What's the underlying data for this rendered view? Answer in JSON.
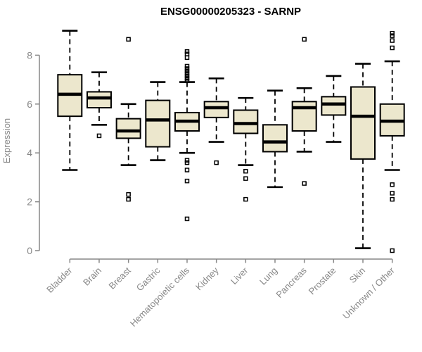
{
  "header": {
    "title": "ENSG00000205323 - SARNP"
  },
  "y_axis_label": "Expression",
  "colors": {
    "box_fill": "#ece7cd",
    "line": "#000000",
    "axis": "#878787",
    "background": "#ffffff"
  },
  "chart_data": {
    "type": "boxplot",
    "title": "ENSG00000205323 - SARNP",
    "xlabel": "",
    "ylabel": "Expression",
    "ylim": [
      0,
      9.1
    ],
    "yticks": [
      0,
      2,
      4,
      6,
      8
    ],
    "grid": false,
    "legend": false,
    "categories": [
      "Bladder",
      "Brain",
      "Breast",
      "Gastric",
      "Hematopoietic cells",
      "Kidney",
      "Liver",
      "Lung",
      "Pancreas",
      "Prostate",
      "Skin",
      "Unknown / Other"
    ],
    "series": [
      {
        "name": "Bladder",
        "whisker_low": 3.3,
        "q1": 5.5,
        "median": 6.4,
        "q3": 7.2,
        "whisker_high": 9.0,
        "outliers": []
      },
      {
        "name": "Brain",
        "whisker_low": 5.15,
        "q1": 5.85,
        "median": 6.25,
        "q3": 6.5,
        "whisker_high": 7.3,
        "outliers": [
          4.7
        ]
      },
      {
        "name": "Breast",
        "whisker_low": 3.5,
        "q1": 4.6,
        "median": 4.9,
        "q3": 5.4,
        "whisker_high": 6.0,
        "outliers": [
          8.65,
          2.3,
          2.1
        ]
      },
      {
        "name": "Gastric",
        "whisker_low": 3.7,
        "q1": 4.25,
        "median": 5.35,
        "q3": 6.15,
        "whisker_high": 6.9,
        "outliers": []
      },
      {
        "name": "Hematopoietic cells",
        "whisker_low": 4.0,
        "q1": 4.9,
        "median": 5.3,
        "q3": 5.65,
        "whisker_high": 6.9,
        "outliers": [
          8.15,
          8.05,
          7.9,
          7.55,
          7.45,
          7.35,
          7.25,
          7.15,
          7.05,
          6.95,
          3.7,
          3.6,
          3.3,
          2.85,
          1.3
        ]
      },
      {
        "name": "Kidney",
        "whisker_low": 4.45,
        "q1": 5.45,
        "median": 5.85,
        "q3": 6.1,
        "whisker_high": 7.05,
        "outliers": [
          3.6
        ]
      },
      {
        "name": "Liver",
        "whisker_low": 3.5,
        "q1": 4.8,
        "median": 5.2,
        "q3": 5.75,
        "whisker_high": 6.25,
        "outliers": [
          3.25,
          2.95,
          2.1
        ]
      },
      {
        "name": "Lung",
        "whisker_low": 2.6,
        "q1": 4.05,
        "median": 4.45,
        "q3": 5.15,
        "whisker_high": 6.55,
        "outliers": []
      },
      {
        "name": "Pancreas",
        "whisker_low": 4.05,
        "q1": 4.9,
        "median": 5.85,
        "q3": 6.1,
        "whisker_high": 6.65,
        "outliers": [
          8.65,
          2.75
        ]
      },
      {
        "name": "Prostate",
        "whisker_low": 4.45,
        "q1": 5.55,
        "median": 6.0,
        "q3": 6.3,
        "whisker_high": 7.15,
        "outliers": []
      },
      {
        "name": "Skin",
        "whisker_low": 0.1,
        "q1": 3.75,
        "median": 5.5,
        "q3": 6.7,
        "whisker_high": 7.65,
        "outliers": []
      },
      {
        "name": "Unknown / Other",
        "whisker_low": 3.3,
        "q1": 4.7,
        "median": 5.3,
        "q3": 6.0,
        "whisker_high": 7.75,
        "outliers": [
          8.9,
          8.8,
          8.6,
          8.3,
          2.7,
          2.35,
          2.1,
          0.0
        ]
      }
    ]
  }
}
